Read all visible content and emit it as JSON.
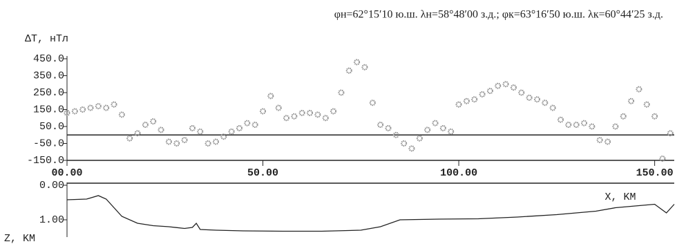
{
  "chart_data": [
    {
      "type": "scatter",
      "title": "φн=62°15′10 ю.ш. λн=58°48′00 з.д.; φк=63°16′50 ю.ш. λк=60°44′25 з.д.",
      "y_label": "ΔT, нТл",
      "color": "#8a8a8a",
      "x": [
        0,
        2,
        4,
        6,
        8,
        10,
        12,
        14,
        16,
        18,
        20,
        22,
        24,
        26,
        28,
        30,
        32,
        34,
        36,
        38,
        40,
        42,
        44,
        46,
        48,
        50,
        52,
        54,
        56,
        58,
        60,
        62,
        64,
        66,
        68,
        70,
        72,
        74,
        76,
        78,
        80,
        82,
        84,
        86,
        88,
        90,
        92,
        94,
        96,
        98,
        100,
        102,
        104,
        106,
        108,
        110,
        112,
        114,
        116,
        118,
        120,
        122,
        124,
        126,
        128,
        130,
        132,
        134,
        136,
        138,
        140,
        142,
        144,
        146,
        148,
        150,
        152,
        154
      ],
      "values": [
        130,
        140,
        150,
        160,
        170,
        160,
        180,
        120,
        -20,
        10,
        60,
        80,
        30,
        -40,
        -50,
        -30,
        40,
        20,
        -50,
        -40,
        -10,
        20,
        40,
        70,
        60,
        140,
        230,
        160,
        100,
        110,
        130,
        130,
        120,
        100,
        140,
        250,
        380,
        430,
        400,
        190,
        60,
        40,
        0,
        -50,
        -80,
        -20,
        30,
        70,
        40,
        20,
        180,
        200,
        210,
        240,
        260,
        290,
        300,
        280,
        250,
        220,
        210,
        190,
        160,
        90,
        60,
        60,
        70,
        50,
        -30,
        -40,
        50,
        110,
        200,
        270,
        180,
        110,
        -140,
        10
      ],
      "xlim": [
        0,
        155
      ],
      "xticks": [
        {
          "value": 0,
          "label": "00.00"
        },
        {
          "value": 50,
          "label": "50.00"
        },
        {
          "value": 100,
          "label": "100.00"
        },
        {
          "value": 150,
          "label": "150.00"
        }
      ],
      "ylim": [
        -150,
        450
      ],
      "yticks": [
        {
          "value": 450,
          "label": "450.0"
        },
        {
          "value": 350,
          "label": "350.0"
        },
        {
          "value": 250,
          "label": "250.0"
        },
        {
          "value": 150,
          "label": "150.0"
        },
        {
          "value": 50,
          "label": "50.0"
        },
        {
          "value": -50,
          "label": "-50.0"
        },
        {
          "value": -150,
          "label": "-150.0"
        }
      ]
    },
    {
      "type": "line",
      "x_label": "X, KM",
      "y_label": "Z, KM",
      "color": "#222222",
      "x": [
        0,
        5,
        8,
        10,
        14,
        18,
        22,
        26,
        30,
        32,
        33,
        34,
        38,
        45,
        55,
        65,
        75,
        80,
        85,
        95,
        105,
        115,
        125,
        135,
        140,
        145,
        150,
        153,
        155
      ],
      "values": [
        0.42,
        0.4,
        0.3,
        0.4,
        0.9,
        1.1,
        1.17,
        1.2,
        1.25,
        1.22,
        1.1,
        1.28,
        1.3,
        1.32,
        1.33,
        1.33,
        1.3,
        1.2,
        1.0,
        0.98,
        0.97,
        0.92,
        0.85,
        0.75,
        0.65,
        0.6,
        0.55,
        0.8,
        0.55
      ],
      "xlim": [
        0,
        155
      ],
      "ylim": [
        0,
        1.5
      ],
      "yticks": [
        {
          "value": 0,
          "label": "0.00"
        },
        {
          "value": 1,
          "label": "1.00"
        }
      ]
    }
  ]
}
